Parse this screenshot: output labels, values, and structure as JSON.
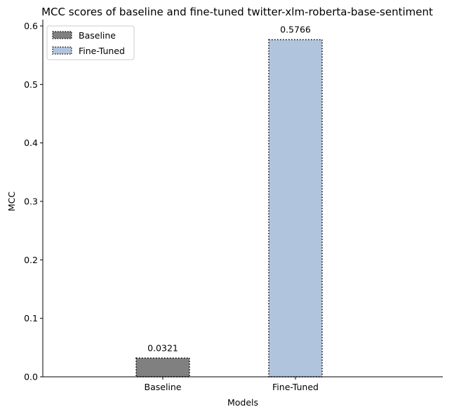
{
  "chart_data": {
    "type": "bar",
    "title": "MCC scores of baseline and fine-tuned twitter-xlm-roberta-base-sentiment",
    "xlabel": "Models",
    "ylabel": "MCC",
    "categories": [
      "Baseline",
      "Fine-Tuned"
    ],
    "values": [
      0.0321,
      0.5766
    ],
    "data_labels": [
      "0.0321",
      "0.5766"
    ],
    "colors": [
      "#808080",
      "#b0c4de"
    ],
    "edge_color": "#000000",
    "edge_style": "dotted",
    "ylim": [
      0,
      0.6
    ],
    "yticks": [
      0.0,
      0.1,
      0.2,
      0.3,
      0.4,
      0.5,
      0.6
    ],
    "ytick_labels": [
      "0.0",
      "0.1",
      "0.2",
      "0.3",
      "0.4",
      "0.5",
      "0.6"
    ],
    "grid": false,
    "legend": {
      "placement": "top-left",
      "entries": [
        "Baseline",
        "Fine-Tuned"
      ]
    }
  }
}
